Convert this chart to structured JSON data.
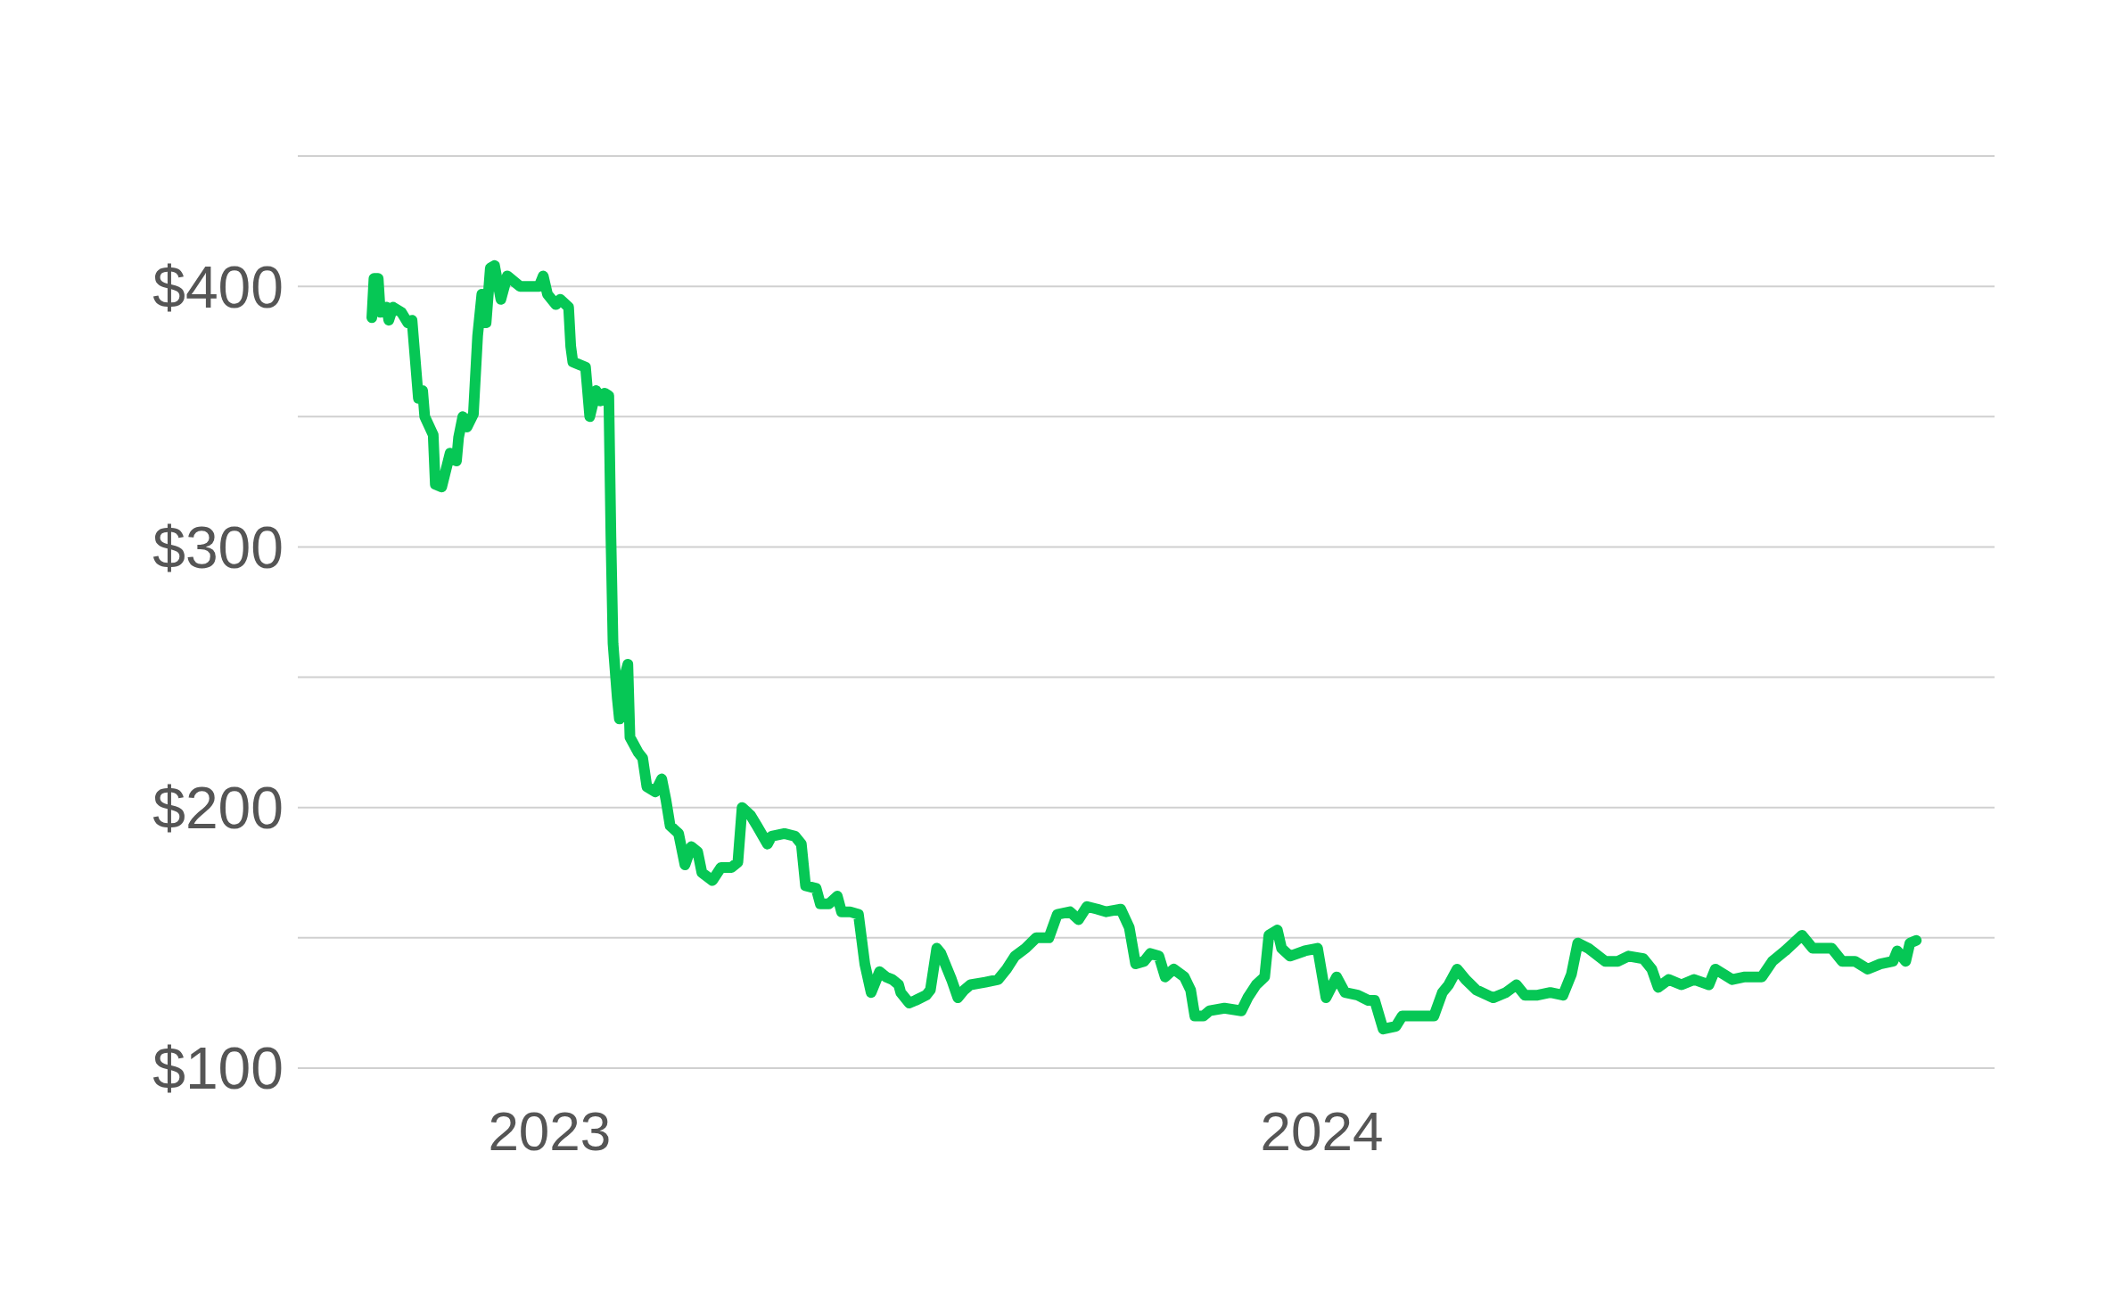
{
  "chart_data": {
    "type": "line",
    "xlim": [
      "2022-09-04",
      "2024-11-14"
    ],
    "xticks": [
      "2023",
      "2024"
    ],
    "ylim": [
      100,
      450
    ],
    "yticks": [
      {
        "value": 100,
        "label": "$100"
      },
      {
        "value": 150,
        "label": null
      },
      {
        "value": 200,
        "label": "$200"
      },
      {
        "value": 250,
        "label": null
      },
      {
        "value": 300,
        "label": "$300"
      },
      {
        "value": 350,
        "label": null
      },
      {
        "value": 400,
        "label": "$400"
      },
      {
        "value": 450,
        "label": null
      }
    ],
    "grid": "y",
    "marker": "none",
    "line_style": "solid",
    "series": [
      {
        "color": "#06c755",
        "x": [
          "2022-10-09",
          "2022-10-10",
          "2022-10-12",
          "2022-10-13",
          "2022-10-16",
          "2022-10-17",
          "2022-10-19",
          "2022-10-23",
          "2022-10-26",
          "2022-10-28",
          "2022-10-31",
          "2022-11-02",
          "2022-11-03",
          "2022-11-07",
          "2022-11-08",
          "2022-11-11",
          "2022-11-15",
          "2022-11-18",
          "2022-11-19",
          "2022-11-21",
          "2022-11-23",
          "2022-11-26",
          "2022-11-28",
          "2022-11-30",
          "2022-12-02",
          "2022-12-04",
          "2022-12-06",
          "2022-12-09",
          "2022-12-12",
          "2022-12-18",
          "2022-12-21",
          "2022-12-27",
          "2022-12-29",
          "2022-12-31",
          "2023-01-04",
          "2023-01-06",
          "2023-01-10",
          "2023-01-11",
          "2023-01-12",
          "2023-01-15",
          "2023-01-18",
          "2023-01-20",
          "2023-01-23",
          "2023-01-25",
          "2023-01-27",
          "2023-01-29",
          "2023-01-30",
          "2023-01-31",
          "2023-02-02",
          "2023-02-03",
          "2023-02-06",
          "2023-02-07",
          "2023-02-08",
          "2023-02-12",
          "2023-02-14",
          "2023-02-16",
          "2023-02-20",
          "2023-02-23",
          "2023-02-25",
          "2023-02-27",
          "2023-03-03",
          "2023-03-06",
          "2023-03-09",
          "2023-03-12",
          "2023-03-14",
          "2023-03-19",
          "2023-03-23",
          "2023-03-28",
          "2023-03-31",
          "2023-04-02",
          "2023-04-06",
          "2023-04-09",
          "2023-04-14",
          "2023-04-16",
          "2023-04-22",
          "2023-04-27",
          "2023-04-30",
          "2023-05-02",
          "2023-05-07",
          "2023-05-09",
          "2023-05-13",
          "2023-05-17",
          "2023-05-19",
          "2023-05-23",
          "2023-05-27",
          "2023-05-30",
          "2023-06-02",
          "2023-06-06",
          "2023-06-09",
          "2023-06-12",
          "2023-06-15",
          "2023-06-16",
          "2023-06-20",
          "2023-06-23",
          "2023-06-28",
          "2023-06-30",
          "2023-07-03",
          "2023-07-05",
          "2023-07-10",
          "2023-07-13",
          "2023-07-16",
          "2023-07-19",
          "2023-07-26",
          "2023-08-01",
          "2023-08-05",
          "2023-08-09",
          "2023-08-14",
          "2023-08-19",
          "2023-08-25",
          "2023-08-29",
          "2023-09-04",
          "2023-09-08",
          "2023-09-12",
          "2023-09-17",
          "2023-09-21",
          "2023-09-28",
          "2023-10-02",
          "2023-10-05",
          "2023-10-09",
          "2023-10-12",
          "2023-10-16",
          "2023-10-19",
          "2023-10-23",
          "2023-10-28",
          "2023-10-31",
          "2023-11-02",
          "2023-11-06",
          "2023-11-09",
          "2023-11-16",
          "2023-11-24",
          "2023-11-27",
          "2023-12-01",
          "2023-12-05",
          "2023-12-07",
          "2023-12-11",
          "2023-12-13",
          "2023-12-17",
          "2023-12-24",
          "2023-12-30",
          "2024-01-03",
          "2024-01-08",
          "2024-01-12",
          "2024-01-18",
          "2024-01-23",
          "2024-01-26",
          "2024-01-30",
          "2024-02-05",
          "2024-02-08",
          "2024-02-15",
          "2024-02-23",
          "2024-02-27",
          "2024-03-01",
          "2024-03-05",
          "2024-03-09",
          "2024-03-14",
          "2024-03-22",
          "2024-03-28",
          "2024-04-02",
          "2024-04-06",
          "2024-04-12",
          "2024-04-18",
          "2024-04-24",
          "2024-04-28",
          "2024-05-01",
          "2024-05-06",
          "2024-05-14",
          "2024-05-20",
          "2024-05-25",
          "2024-06-01",
          "2024-06-05",
          "2024-06-08",
          "2024-06-13",
          "2024-06-19",
          "2024-06-25",
          "2024-07-02",
          "2024-07-05",
          "2024-07-13",
          "2024-07-19",
          "2024-07-27",
          "2024-08-01",
          "2024-08-07",
          "2024-08-15",
          "2024-08-20",
          "2024-08-29",
          "2024-09-03",
          "2024-09-09",
          "2024-09-15",
          "2024-09-21",
          "2024-09-27",
          "2024-09-29",
          "2024-10-03",
          "2024-10-05",
          "2024-10-08"
        ],
        "values": [
          388,
          403,
          403,
          390,
          392,
          387,
          392,
          390,
          386,
          387,
          357,
          360,
          350,
          343,
          324,
          323,
          336,
          333,
          342,
          350,
          346,
          351,
          381,
          397,
          386,
          407,
          408,
          395,
          404,
          400,
          400,
          400,
          404,
          397,
          393,
          395,
          392,
          377,
          371,
          370,
          369,
          350,
          360,
          356,
          359,
          358,
          304,
          263,
          242,
          234,
          252,
          255,
          227,
          221,
          219,
          208,
          206,
          211,
          203,
          193,
          190,
          178,
          185,
          183,
          175,
          172,
          177,
          177,
          179,
          200,
          197,
          193,
          186,
          189,
          190,
          189,
          186,
          170,
          169,
          163,
          163,
          166,
          160,
          160,
          159,
          140,
          129,
          137,
          135,
          134,
          132,
          129,
          125,
          126,
          128,
          130,
          146,
          144,
          134,
          127,
          130,
          132,
          133,
          134,
          138,
          143,
          146,
          150,
          150,
          159,
          160,
          157,
          162,
          161,
          160,
          161,
          154,
          140,
          141,
          144,
          143,
          135,
          138,
          135,
          130,
          120,
          120,
          122,
          123,
          122,
          127,
          132,
          135,
          151,
          153,
          146,
          143,
          145,
          146,
          127,
          135,
          129,
          128,
          126,
          126,
          115,
          116,
          120,
          120,
          120,
          129,
          132,
          138,
          134,
          130,
          127,
          129,
          132,
          128,
          128,
          129,
          128,
          136,
          148,
          146,
          141,
          141,
          143,
          142,
          138,
          131,
          134,
          132,
          134,
          132,
          138,
          134,
          135,
          135,
          141,
          145,
          151,
          146,
          146,
          141,
          141,
          138,
          140,
          141,
          145,
          141,
          148,
          149
        ]
      }
    ]
  }
}
